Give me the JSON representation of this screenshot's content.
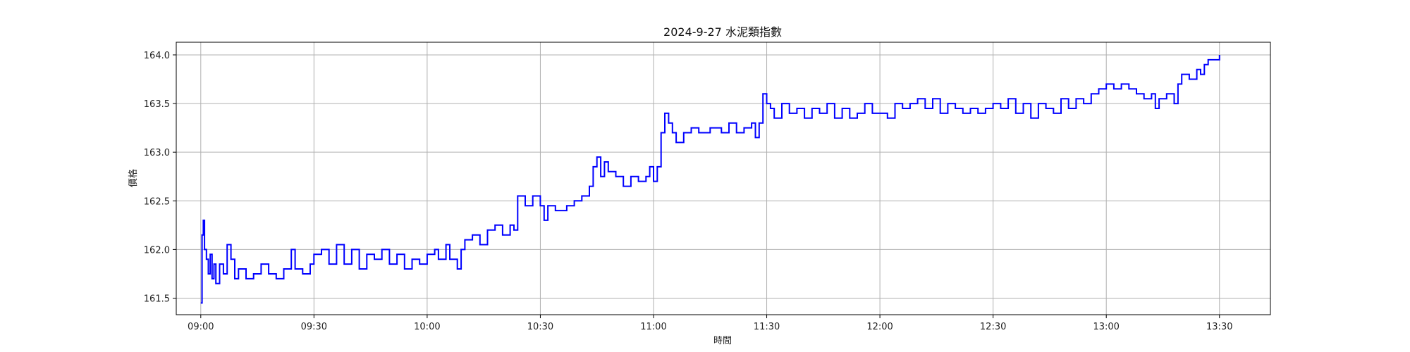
{
  "chart_data": {
    "type": "line",
    "title": "2024-9-27 水泥類指數",
    "xlabel": "時間",
    "ylabel": "價格",
    "grid": true,
    "x_ticks": [
      "09:00",
      "09:30",
      "10:00",
      "10:30",
      "11:00",
      "11:30",
      "12:00",
      "12:30",
      "13:00",
      "13:30"
    ],
    "y_ticks": [
      "161.5",
      "162.0",
      "162.5",
      "163.0",
      "163.5",
      "164.0"
    ],
    "xlim": [
      "08:53:30",
      "13:43:30"
    ],
    "ylim": [
      161.33,
      164.13
    ],
    "series": [
      {
        "color": "#0000ff",
        "points": [
          [
            "09:00",
            161.45
          ],
          [
            "09:00:20",
            162.15
          ],
          [
            "09:00:40",
            162.3
          ],
          [
            "09:01",
            162.0
          ],
          [
            "09:01:30",
            161.9
          ],
          [
            "09:02",
            161.75
          ],
          [
            "09:02:30",
            161.95
          ],
          [
            "09:03",
            161.7
          ],
          [
            "09:03:30",
            161.85
          ],
          [
            "09:04",
            161.65
          ],
          [
            "09:05",
            161.85
          ],
          [
            "09:06",
            161.75
          ],
          [
            "09:07",
            162.05
          ],
          [
            "09:08",
            161.9
          ],
          [
            "09:09",
            161.7
          ],
          [
            "09:10",
            161.8
          ],
          [
            "09:12",
            161.7
          ],
          [
            "09:14",
            161.75
          ],
          [
            "09:16",
            161.85
          ],
          [
            "09:18",
            161.75
          ],
          [
            "09:20",
            161.7
          ],
          [
            "09:22",
            161.8
          ],
          [
            "09:24",
            162.0
          ],
          [
            "09:25",
            161.8
          ],
          [
            "09:27",
            161.75
          ],
          [
            "09:29",
            161.85
          ],
          [
            "09:30",
            161.95
          ],
          [
            "09:32",
            162.0
          ],
          [
            "09:34",
            161.85
          ],
          [
            "09:36",
            162.05
          ],
          [
            "09:38",
            161.85
          ],
          [
            "09:40",
            162.0
          ],
          [
            "09:42",
            161.8
          ],
          [
            "09:44",
            161.95
          ],
          [
            "09:46",
            161.9
          ],
          [
            "09:48",
            162.0
          ],
          [
            "09:50",
            161.85
          ],
          [
            "09:52",
            161.95
          ],
          [
            "09:54",
            161.8
          ],
          [
            "09:56",
            161.9
          ],
          [
            "09:58",
            161.85
          ],
          [
            "10:00",
            161.95
          ],
          [
            "10:02",
            162.0
          ],
          [
            "10:03",
            161.9
          ],
          [
            "10:05",
            162.05
          ],
          [
            "10:06",
            161.9
          ],
          [
            "10:08",
            161.8
          ],
          [
            "10:09",
            162.0
          ],
          [
            "10:10",
            162.1
          ],
          [
            "10:12",
            162.15
          ],
          [
            "10:14",
            162.05
          ],
          [
            "10:16",
            162.2
          ],
          [
            "10:18",
            162.25
          ],
          [
            "10:20",
            162.15
          ],
          [
            "10:22",
            162.25
          ],
          [
            "10:23",
            162.2
          ],
          [
            "10:24",
            162.55
          ],
          [
            "10:26",
            162.45
          ],
          [
            "10:28",
            162.55
          ],
          [
            "10:30",
            162.45
          ],
          [
            "10:31",
            162.3
          ],
          [
            "10:32",
            162.45
          ],
          [
            "10:34",
            162.4
          ],
          [
            "10:37",
            162.45
          ],
          [
            "10:39",
            162.5
          ],
          [
            "10:41",
            162.55
          ],
          [
            "10:43",
            162.65
          ],
          [
            "10:44",
            162.85
          ],
          [
            "10:45",
            162.95
          ],
          [
            "10:46",
            162.75
          ],
          [
            "10:47",
            162.9
          ],
          [
            "10:48",
            162.8
          ],
          [
            "10:50",
            162.75
          ],
          [
            "10:52",
            162.65
          ],
          [
            "10:54",
            162.75
          ],
          [
            "10:56",
            162.7
          ],
          [
            "10:58",
            162.75
          ],
          [
            "10:59",
            162.85
          ],
          [
            "11:00",
            162.7
          ],
          [
            "11:01",
            162.85
          ],
          [
            "11:02",
            163.2
          ],
          [
            "11:03",
            163.4
          ],
          [
            "11:04",
            163.3
          ],
          [
            "11:05",
            163.2
          ],
          [
            "11:06",
            163.1
          ],
          [
            "11:08",
            163.2
          ],
          [
            "11:10",
            163.25
          ],
          [
            "11:12",
            163.2
          ],
          [
            "11:15",
            163.25
          ],
          [
            "11:18",
            163.2
          ],
          [
            "11:20",
            163.3
          ],
          [
            "11:22",
            163.2
          ],
          [
            "11:24",
            163.25
          ],
          [
            "11:26",
            163.3
          ],
          [
            "11:27",
            163.15
          ],
          [
            "11:28",
            163.3
          ],
          [
            "11:29",
            163.6
          ],
          [
            "11:30",
            163.5
          ],
          [
            "11:31",
            163.45
          ],
          [
            "11:32",
            163.35
          ],
          [
            "11:34",
            163.5
          ],
          [
            "11:36",
            163.4
          ],
          [
            "11:38",
            163.45
          ],
          [
            "11:40",
            163.35
          ],
          [
            "11:42",
            163.45
          ],
          [
            "11:44",
            163.4
          ],
          [
            "11:46",
            163.5
          ],
          [
            "11:48",
            163.35
          ],
          [
            "11:50",
            163.45
          ],
          [
            "11:52",
            163.35
          ],
          [
            "11:54",
            163.4
          ],
          [
            "11:56",
            163.5
          ],
          [
            "11:58",
            163.4
          ],
          [
            "12:00",
            163.4
          ],
          [
            "12:02",
            163.35
          ],
          [
            "12:04",
            163.5
          ],
          [
            "12:06",
            163.45
          ],
          [
            "12:08",
            163.5
          ],
          [
            "12:10",
            163.55
          ],
          [
            "12:12",
            163.45
          ],
          [
            "12:14",
            163.55
          ],
          [
            "12:16",
            163.4
          ],
          [
            "12:18",
            163.5
          ],
          [
            "12:20",
            163.45
          ],
          [
            "12:22",
            163.4
          ],
          [
            "12:24",
            163.45
          ],
          [
            "12:26",
            163.4
          ],
          [
            "12:28",
            163.45
          ],
          [
            "12:30",
            163.5
          ],
          [
            "12:32",
            163.45
          ],
          [
            "12:34",
            163.55
          ],
          [
            "12:36",
            163.4
          ],
          [
            "12:38",
            163.5
          ],
          [
            "12:40",
            163.35
          ],
          [
            "12:42",
            163.5
          ],
          [
            "12:44",
            163.45
          ],
          [
            "12:46",
            163.4
          ],
          [
            "12:48",
            163.55
          ],
          [
            "12:50",
            163.45
          ],
          [
            "12:52",
            163.55
          ],
          [
            "12:54",
            163.5
          ],
          [
            "12:56",
            163.6
          ],
          [
            "12:58",
            163.65
          ],
          [
            "13:00",
            163.7
          ],
          [
            "13:02",
            163.65
          ],
          [
            "13:04",
            163.7
          ],
          [
            "13:06",
            163.65
          ],
          [
            "13:08",
            163.6
          ],
          [
            "13:10",
            163.55
          ],
          [
            "13:12",
            163.6
          ],
          [
            "13:13",
            163.45
          ],
          [
            "13:14",
            163.55
          ],
          [
            "13:16",
            163.6
          ],
          [
            "13:18",
            163.5
          ],
          [
            "13:19",
            163.7
          ],
          [
            "13:20",
            163.8
          ],
          [
            "13:22",
            163.75
          ],
          [
            "13:24",
            163.85
          ],
          [
            "13:25",
            163.8
          ],
          [
            "13:26",
            163.9
          ],
          [
            "13:27",
            163.95
          ],
          [
            "13:29",
            163.95
          ],
          [
            "13:30",
            164.0
          ]
        ]
      }
    ]
  }
}
